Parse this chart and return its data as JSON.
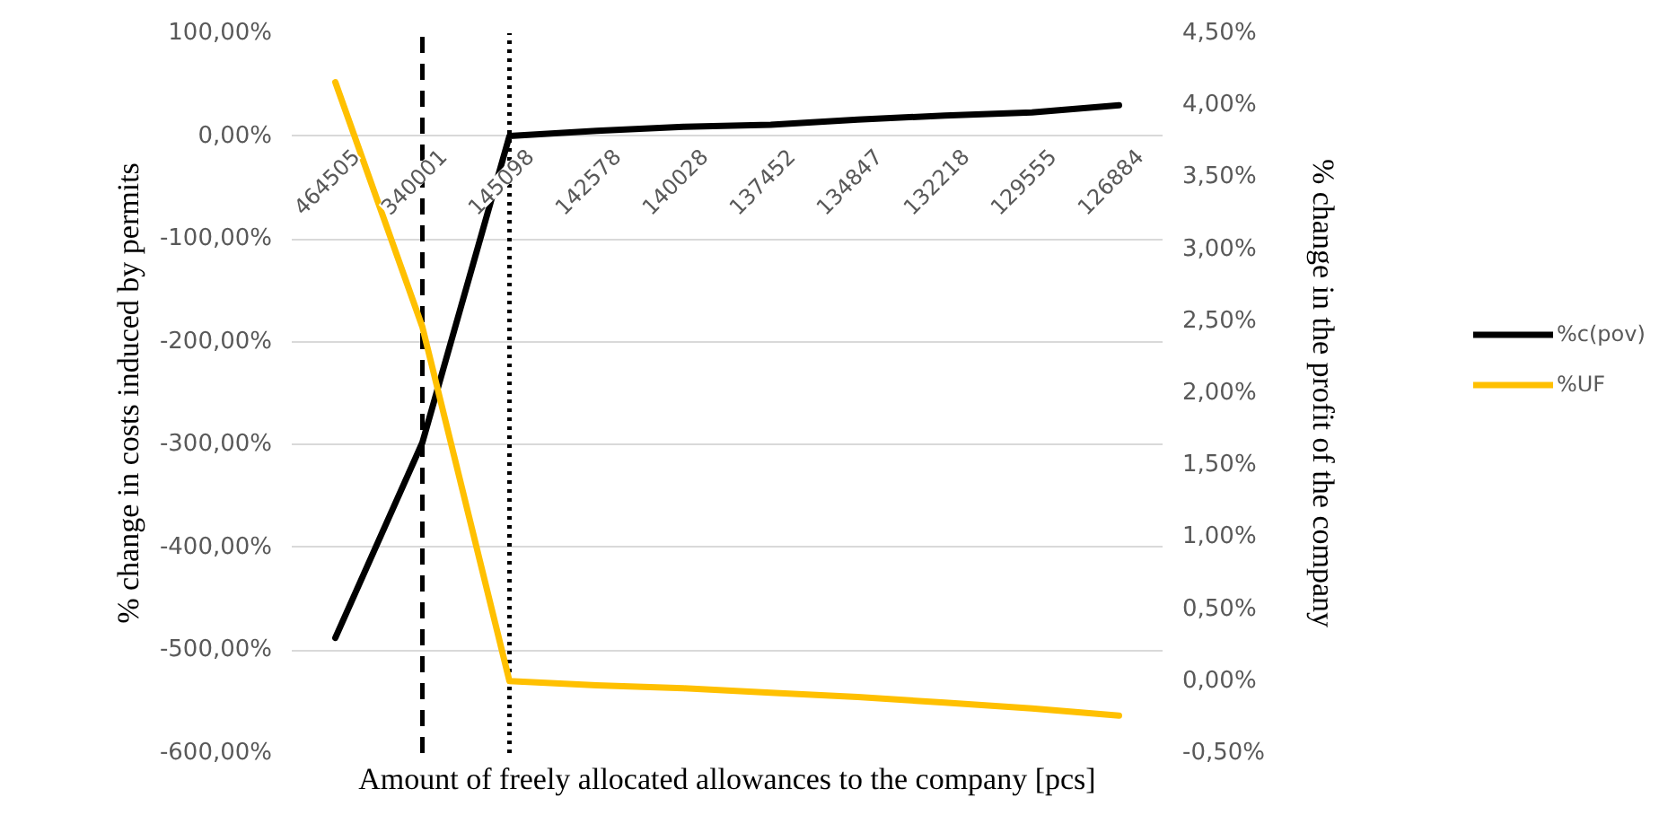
{
  "chart_data": {
    "type": "line",
    "xlabel": "Amount of freely allocated allowances to the company [pcs]",
    "ylabel": "% change in costs induced by permits",
    "y2label": "% change in the profit of the company",
    "categories": [
      "464505",
      "340001",
      "145098",
      "142578",
      "140028",
      "137452",
      "134847",
      "132218",
      "129555",
      "126884"
    ],
    "series": [
      {
        "name": "%c(pov)",
        "color": "#000000",
        "values": [
          -488,
          -298,
          0,
          5,
          9,
          11,
          16,
          20,
          23,
          30
        ]
      },
      {
        "name": "%UF",
        "color": "#ffc000",
        "axis": "y2",
        "values": [
          4.16,
          2.46,
          0.0,
          -0.03,
          -0.05,
          -0.08,
          -0.11,
          -0.15,
          -0.19,
          -0.24
        ]
      }
    ],
    "ylim": [
      -600,
      100
    ],
    "yticks": [
      {
        "value": -600,
        "label": "-600,00%"
      },
      {
        "value": -500,
        "label": "-500,00%"
      },
      {
        "value": -400,
        "label": "-400,00%"
      },
      {
        "value": -300,
        "label": "-300,00%"
      },
      {
        "value": -200,
        "label": "-200,00%"
      },
      {
        "value": -100,
        "label": "-100,00%"
      },
      {
        "value": 0,
        "label": "0,00%"
      },
      {
        "value": 100,
        "label": "100,00%"
      }
    ],
    "y2lim": [
      -0.5,
      4.5
    ],
    "y2ticks": [
      {
        "value": -0.5,
        "label": "-0,50%"
      },
      {
        "value": 0,
        "label": "0,00%"
      },
      {
        "value": 0.5,
        "label": "0,50%"
      },
      {
        "value": 1,
        "label": "1,00%"
      },
      {
        "value": 1.5,
        "label": "1,50%"
      },
      {
        "value": 2,
        "label": "2,00%"
      },
      {
        "value": 2.5,
        "label": "2,50%"
      },
      {
        "value": 3,
        "label": "3,00%"
      },
      {
        "value": 3.5,
        "label": "3,50%"
      },
      {
        "value": 4,
        "label": "4,00%"
      },
      {
        "value": 4.5,
        "label": "4,50%"
      }
    ],
    "ref_lines": [
      {
        "axis": "x",
        "value": "340001",
        "color": "#000000",
        "line_style": "dashed"
      },
      {
        "axis": "x",
        "value": "145098",
        "color": "#000000",
        "line_style": "dotted"
      }
    ],
    "grid": "y",
    "legend": "right",
    "line_style": "solid"
  }
}
